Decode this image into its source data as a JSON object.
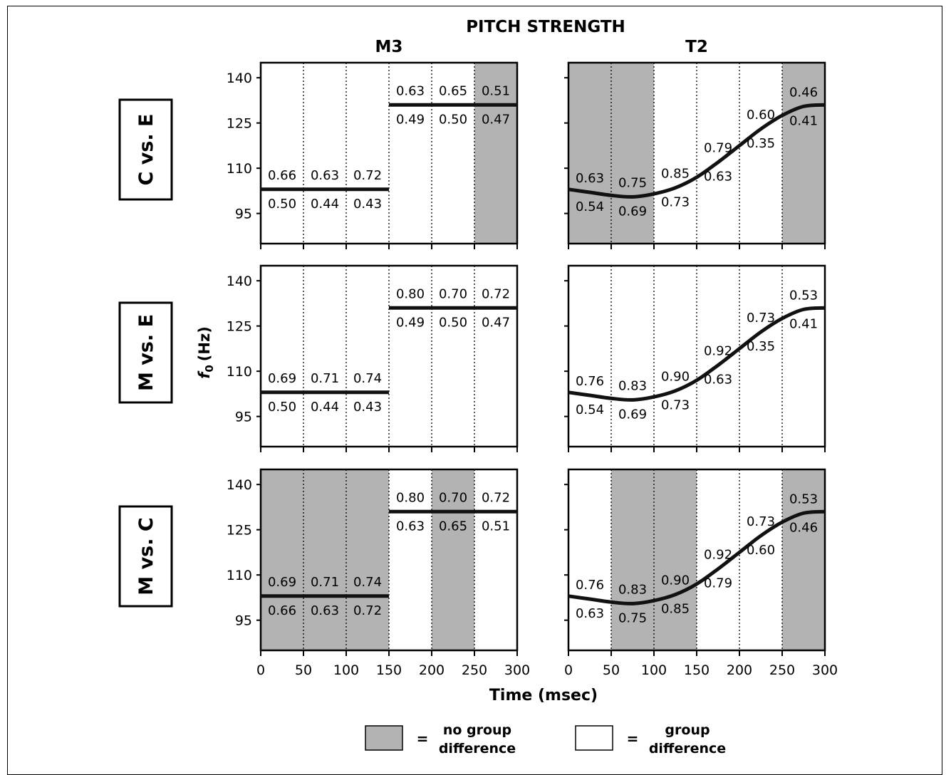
{
  "chart_data": {
    "type": "line",
    "title": "PITCH STRENGTH",
    "xlabel": "Time (msec)",
    "ylabel": "f0 (Hz)",
    "ylabel_parts": {
      "main": "f",
      "sub": "0",
      "unit": "(Hz)"
    },
    "xlim": [
      0,
      300
    ],
    "ylim": [
      85,
      145
    ],
    "x_ticks": [
      "0",
      "50",
      "100",
      "150",
      "200",
      "250",
      "300"
    ],
    "y_ticks": [
      "140",
      "125",
      "110",
      "95"
    ],
    "y_tick_values": [
      140,
      125,
      110,
      95
    ],
    "columns": [
      "M3",
      "T2"
    ],
    "rows": [
      "C vs. E",
      "M vs. E",
      "M vs. C"
    ],
    "contours": {
      "M3": {
        "x": [
          0,
          150,
          150,
          300
        ],
        "f0": [
          103,
          103,
          131,
          131
        ]
      },
      "T2": {
        "x": [
          0,
          25,
          50,
          75,
          100,
          125,
          150,
          175,
          200,
          225,
          250,
          275,
          300
        ],
        "f0": [
          103,
          102,
          101,
          100.5,
          101.5,
          103.5,
          107,
          112,
          117.5,
          123,
          127.5,
          130.5,
          131
        ]
      }
    },
    "panels": [
      {
        "row": 0,
        "col": "M3",
        "shaded": [
          [
            250,
            300
          ]
        ],
        "labels": [
          {
            "x": 25,
            "top": "0.66",
            "bottom": "0.50"
          },
          {
            "x": 75,
            "top": "0.63",
            "bottom": "0.44"
          },
          {
            "x": 125,
            "top": "0.72",
            "bottom": "0.43"
          },
          {
            "x": 175,
            "top": "0.63",
            "bottom": "0.49"
          },
          {
            "x": 225,
            "top": "0.65",
            "bottom": "0.50"
          },
          {
            "x": 275,
            "top": "0.51",
            "bottom": "0.47"
          }
        ]
      },
      {
        "row": 0,
        "col": "T2",
        "shaded": [
          [
            0,
            100
          ],
          [
            250,
            300
          ]
        ],
        "labels": [
          {
            "x": 25,
            "top": "0.63",
            "bottom": "0.54"
          },
          {
            "x": 75,
            "top": "0.75",
            "bottom": "0.69"
          },
          {
            "x": 125,
            "top": "0.85",
            "bottom": "0.73"
          },
          {
            "x": 175,
            "top": "0.79",
            "bottom": "0.63"
          },
          {
            "x": 225,
            "top": "0.60",
            "bottom": "0.35"
          },
          {
            "x": 275,
            "top": "0.46",
            "bottom": "0.41"
          }
        ]
      },
      {
        "row": 1,
        "col": "M3",
        "shaded": [],
        "labels": [
          {
            "x": 25,
            "top": "0.69",
            "bottom": "0.50"
          },
          {
            "x": 75,
            "top": "0.71",
            "bottom": "0.44"
          },
          {
            "x": 125,
            "top": "0.74",
            "bottom": "0.43"
          },
          {
            "x": 175,
            "top": "0.80",
            "bottom": "0.49"
          },
          {
            "x": 225,
            "top": "0.70",
            "bottom": "0.50"
          },
          {
            "x": 275,
            "top": "0.72",
            "bottom": "0.47"
          }
        ]
      },
      {
        "row": 1,
        "col": "T2",
        "shaded": [],
        "labels": [
          {
            "x": 25,
            "top": "0.76",
            "bottom": "0.54"
          },
          {
            "x": 75,
            "top": "0.83",
            "bottom": "0.69"
          },
          {
            "x": 125,
            "top": "0.90",
            "bottom": "0.73"
          },
          {
            "x": 175,
            "top": "0.92",
            "bottom": "0.63"
          },
          {
            "x": 225,
            "top": "0.73",
            "bottom": "0.35"
          },
          {
            "x": 275,
            "top": "0.53",
            "bottom": "0.41"
          }
        ]
      },
      {
        "row": 2,
        "col": "M3",
        "shaded": [
          [
            0,
            150
          ],
          [
            200,
            250
          ]
        ],
        "labels": [
          {
            "x": 25,
            "top": "0.69",
            "bottom": "0.66"
          },
          {
            "x": 75,
            "top": "0.71",
            "bottom": "0.63"
          },
          {
            "x": 125,
            "top": "0.74",
            "bottom": "0.72"
          },
          {
            "x": 175,
            "top": "0.80",
            "bottom": "0.63"
          },
          {
            "x": 225,
            "top": "0.70",
            "bottom": "0.65"
          },
          {
            "x": 275,
            "top": "0.72",
            "bottom": "0.51"
          }
        ]
      },
      {
        "row": 2,
        "col": "T2",
        "shaded": [
          [
            50,
            150
          ],
          [
            250,
            300
          ]
        ],
        "labels": [
          {
            "x": 25,
            "top": "0.76",
            "bottom": "0.63"
          },
          {
            "x": 75,
            "top": "0.83",
            "bottom": "0.75"
          },
          {
            "x": 125,
            "top": "0.90",
            "bottom": "0.85"
          },
          {
            "x": 175,
            "top": "0.92",
            "bottom": "0.79"
          },
          {
            "x": 225,
            "top": "0.73",
            "bottom": "0.60"
          },
          {
            "x": 275,
            "top": "0.53",
            "bottom": "0.46"
          }
        ]
      }
    ],
    "legend": [
      {
        "swatch": "#b3b3b3",
        "equals": "=",
        "line1": "no group",
        "line2": "difference"
      },
      {
        "swatch": "#ffffff",
        "equals": "=",
        "line1": "group",
        "line2": "difference"
      }
    ],
    "colors": {
      "shade": "#b3b3b3",
      "line": "#111111",
      "grid": "#000000"
    },
    "grid": "vertical dotted every 50 msec"
  }
}
